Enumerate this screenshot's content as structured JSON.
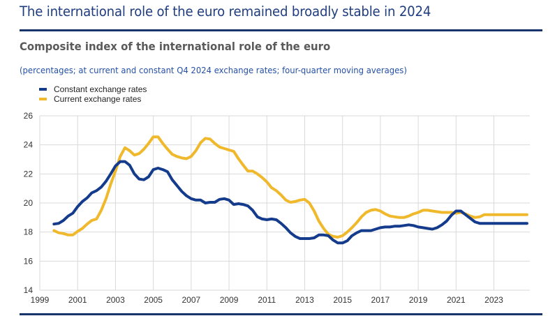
{
  "header": {
    "headline": "The international role of the euro remained broadly stable in 2024",
    "subtitle": "Composite index of the international role of the euro",
    "note": "(percentages; at current and constant Q4 2024 exchange rates; four-quarter moving averages)"
  },
  "colors": {
    "constant": "#143b8c",
    "current": "#f0b82b",
    "grid": "#d9d9d9",
    "rule": "#17336b"
  },
  "chart_data": {
    "type": "line",
    "title": "Composite index of the international role of the euro",
    "subtitle": "(percentages; at current and constant Q4 2024 exchange rates; four-quarter moving averages)",
    "xlabel": "",
    "ylabel": "",
    "xlim": [
      1999,
      2024.9
    ],
    "ylim": [
      14,
      26
    ],
    "yticks": [
      14,
      16,
      18,
      20,
      22,
      24,
      26
    ],
    "xticks": [
      1999,
      2001,
      2003,
      2005,
      2007,
      2009,
      2011,
      2013,
      2015,
      2017,
      2019,
      2021,
      2023
    ],
    "grid": true,
    "legend_position": "top-left",
    "x": [
      1999.75,
      2000.0,
      2000.25,
      2000.5,
      2000.75,
      2001.0,
      2001.25,
      2001.5,
      2001.75,
      2002.0,
      2002.25,
      2002.5,
      2002.75,
      2003.0,
      2003.25,
      2003.5,
      2003.75,
      2004.0,
      2004.25,
      2004.5,
      2004.75,
      2005.0,
      2005.25,
      2005.5,
      2005.75,
      2006.0,
      2006.25,
      2006.5,
      2006.75,
      2007.0,
      2007.25,
      2007.5,
      2007.75,
      2008.0,
      2008.25,
      2008.5,
      2008.75,
      2009.0,
      2009.25,
      2009.5,
      2009.75,
      2010.0,
      2010.25,
      2010.5,
      2010.75,
      2011.0,
      2011.25,
      2011.5,
      2011.75,
      2012.0,
      2012.25,
      2012.5,
      2012.75,
      2013.0,
      2013.25,
      2013.5,
      2013.75,
      2014.0,
      2014.25,
      2014.5,
      2014.75,
      2015.0,
      2015.25,
      2015.5,
      2015.75,
      2016.0,
      2016.25,
      2016.5,
      2016.75,
      2017.0,
      2017.25,
      2017.5,
      2017.75,
      2018.0,
      2018.25,
      2018.5,
      2018.75,
      2019.0,
      2019.25,
      2019.5,
      2019.75,
      2020.0,
      2020.25,
      2020.5,
      2020.75,
      2021.0,
      2021.25,
      2021.5,
      2021.75,
      2022.0,
      2022.25,
      2022.5,
      2022.75,
      2023.0,
      2023.25,
      2023.5,
      2023.75,
      2024.0,
      2024.25,
      2024.5,
      2024.75
    ],
    "series": [
      {
        "name": "Constant exchange rates",
        "values": [
          18.55,
          18.6,
          18.8,
          19.1,
          19.3,
          19.75,
          20.1,
          20.35,
          20.7,
          20.85,
          21.1,
          21.5,
          22.0,
          22.55,
          22.85,
          22.85,
          22.6,
          22.0,
          21.65,
          21.6,
          21.8,
          22.3,
          22.4,
          22.3,
          22.15,
          21.6,
          21.2,
          20.8,
          20.5,
          20.3,
          20.2,
          20.2,
          20.0,
          20.05,
          20.05,
          20.25,
          20.3,
          20.2,
          19.9,
          19.95,
          19.9,
          19.8,
          19.5,
          19.05,
          18.9,
          18.85,
          18.9,
          18.85,
          18.6,
          18.3,
          17.95,
          17.7,
          17.55,
          17.55,
          17.55,
          17.6,
          17.8,
          17.8,
          17.75,
          17.45,
          17.25,
          17.25,
          17.4,
          17.75,
          17.95,
          18.1,
          18.1,
          18.1,
          18.2,
          18.3,
          18.35,
          18.35,
          18.4,
          18.4,
          18.45,
          18.5,
          18.45,
          18.35,
          18.3,
          18.25,
          18.2,
          18.3,
          18.5,
          18.75,
          19.15,
          19.45,
          19.45,
          19.2,
          18.95,
          18.7,
          18.6,
          18.6,
          18.6,
          18.6,
          18.6,
          18.6,
          18.6,
          18.6,
          18.6,
          18.6,
          18.6
        ],
        "color": "#143b8c"
      },
      {
        "name": "Current exchange rates",
        "values": [
          18.1,
          17.95,
          17.9,
          17.8,
          17.8,
          18.05,
          18.25,
          18.55,
          18.8,
          18.9,
          19.5,
          20.3,
          21.3,
          22.2,
          23.2,
          23.8,
          23.6,
          23.3,
          23.4,
          23.7,
          24.1,
          24.55,
          24.55,
          24.1,
          23.7,
          23.35,
          23.2,
          23.1,
          23.05,
          23.2,
          23.6,
          24.15,
          24.45,
          24.4,
          24.1,
          23.85,
          23.75,
          23.65,
          23.55,
          23.05,
          22.6,
          22.2,
          22.2,
          22.0,
          21.75,
          21.45,
          21.05,
          20.85,
          20.55,
          20.2,
          20.05,
          20.1,
          20.2,
          20.25,
          20.0,
          19.45,
          18.75,
          18.25,
          17.85,
          17.7,
          17.65,
          17.75,
          18.0,
          18.3,
          18.65,
          19.05,
          19.35,
          19.5,
          19.55,
          19.45,
          19.25,
          19.1,
          19.05,
          19.0,
          19.0,
          19.1,
          19.25,
          19.35,
          19.5,
          19.5,
          19.45,
          19.4,
          19.35,
          19.35,
          19.35,
          19.3,
          19.35,
          19.25,
          19.1,
          19.0,
          19.05,
          19.2,
          19.2,
          19.2,
          19.2,
          19.2,
          19.2,
          19.2,
          19.2,
          19.2,
          19.2
        ],
        "color": "#f0b82b"
      }
    ]
  }
}
